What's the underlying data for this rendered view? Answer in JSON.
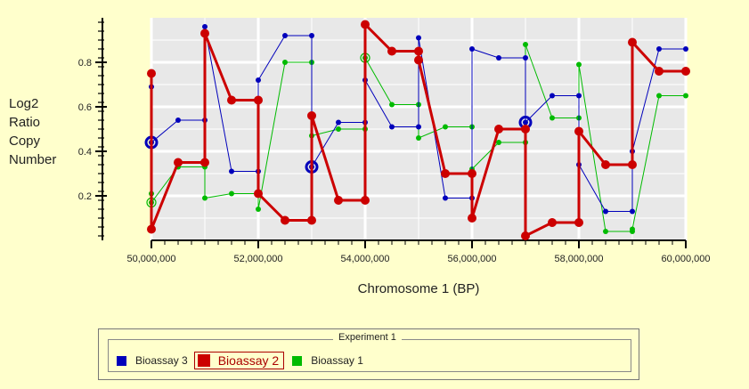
{
  "chart_data": {
    "type": "line",
    "step": true,
    "xlabel": "Chromosome 1 (BP)",
    "ylabel_lines": [
      "Log2",
      "Ratio",
      "Copy",
      "Number"
    ],
    "xlim": [
      50000000,
      60000000
    ],
    "ylim": [
      0,
      1
    ],
    "xticks": [
      50000000,
      52000000,
      54000000,
      56000000,
      58000000,
      60000000
    ],
    "xtick_labels": [
      "50,000,000",
      "52,000,000",
      "54,000,000",
      "56,000,000",
      "58,000,000",
      "60,000,000"
    ],
    "yticks": [
      0.2,
      0.4,
      0.6,
      0.8
    ],
    "ytick_labels": [
      "0.2",
      "0.4",
      "0.6",
      "0.8"
    ],
    "grid": true,
    "background": "#e8e8e8",
    "series": [
      {
        "name": "Bioassay 3",
        "color": "#0000bb",
        "width": 1,
        "points": [
          [
            50000000,
            0.69
          ],
          [
            50000000,
            0.44
          ],
          [
            50500000,
            0.54
          ],
          [
            51000000,
            0.54
          ],
          [
            51000000,
            0.96
          ],
          [
            51500000,
            0.31
          ],
          [
            52000000,
            0.31
          ],
          [
            52000000,
            0.72
          ],
          [
            52500000,
            0.92
          ],
          [
            53000000,
            0.92
          ],
          [
            53000000,
            0.33
          ],
          [
            53500000,
            0.53
          ],
          [
            54000000,
            0.53
          ],
          [
            54000000,
            0.72
          ],
          [
            54500000,
            0.51
          ],
          [
            55000000,
            0.51
          ],
          [
            55000000,
            0.91
          ],
          [
            55500000,
            0.19
          ],
          [
            56000000,
            0.19
          ],
          [
            56000000,
            0.86
          ],
          [
            56500000,
            0.82
          ],
          [
            57000000,
            0.82
          ],
          [
            57000000,
            0.53
          ],
          [
            57500000,
            0.65
          ],
          [
            58000000,
            0.65
          ],
          [
            58000000,
            0.34
          ],
          [
            58500000,
            0.13
          ],
          [
            59000000,
            0.13
          ],
          [
            59000000,
            0.4
          ],
          [
            59500000,
            0.86
          ],
          [
            60000000,
            0.86
          ]
        ],
        "circled": [
          [
            50000000,
            0.44
          ],
          [
            53000000,
            0.33
          ],
          [
            57000000,
            0.53
          ]
        ]
      },
      {
        "name": "Bioassay 2",
        "color": "#cc0000",
        "width": 3,
        "points": [
          [
            50000000,
            0.75
          ],
          [
            50000000,
            0.05
          ],
          [
            50500000,
            0.35
          ],
          [
            51000000,
            0.35
          ],
          [
            51000000,
            0.93
          ],
          [
            51500000,
            0.63
          ],
          [
            52000000,
            0.63
          ],
          [
            52000000,
            0.21
          ],
          [
            52500000,
            0.09
          ],
          [
            53000000,
            0.09
          ],
          [
            53000000,
            0.56
          ],
          [
            53500000,
            0.18
          ],
          [
            54000000,
            0.18
          ],
          [
            54000000,
            0.97
          ],
          [
            54500000,
            0.85
          ],
          [
            55000000,
            0.85
          ],
          [
            55000000,
            0.81
          ],
          [
            55500000,
            0.3
          ],
          [
            56000000,
            0.3
          ],
          [
            56000000,
            0.1
          ],
          [
            56500000,
            0.5
          ],
          [
            57000000,
            0.5
          ],
          [
            57000000,
            0.02
          ],
          [
            57500000,
            0.08
          ],
          [
            58000000,
            0.08
          ],
          [
            58000000,
            0.49
          ],
          [
            58500000,
            0.34
          ],
          [
            59000000,
            0.34
          ],
          [
            59000000,
            0.89
          ],
          [
            59500000,
            0.76
          ],
          [
            60000000,
            0.76
          ]
        ],
        "circled": []
      },
      {
        "name": "Bioassay 1",
        "color": "#00bb00",
        "width": 1,
        "points": [
          [
            50000000,
            0.21
          ],
          [
            50000000,
            0.17
          ],
          [
            50500000,
            0.33
          ],
          [
            51000000,
            0.33
          ],
          [
            51000000,
            0.19
          ],
          [
            51500000,
            0.21
          ],
          [
            52000000,
            0.21
          ],
          [
            52000000,
            0.14
          ],
          [
            52500000,
            0.8
          ],
          [
            53000000,
            0.8
          ],
          [
            53000000,
            0.47
          ],
          [
            53500000,
            0.5
          ],
          [
            54000000,
            0.5
          ],
          [
            54000000,
            0.82
          ],
          [
            54500000,
            0.61
          ],
          [
            55000000,
            0.61
          ],
          [
            55000000,
            0.46
          ],
          [
            55500000,
            0.51
          ],
          [
            56000000,
            0.51
          ],
          [
            56000000,
            0.32
          ],
          [
            56500000,
            0.44
          ],
          [
            57000000,
            0.44
          ],
          [
            57000000,
            0.88
          ],
          [
            57500000,
            0.55
          ],
          [
            58000000,
            0.55
          ],
          [
            58000000,
            0.79
          ],
          [
            58500000,
            0.04
          ],
          [
            59000000,
            0.04
          ],
          [
            59000000,
            0.05
          ],
          [
            59500000,
            0.65
          ],
          [
            60000000,
            0.65
          ]
        ],
        "circled": [
          [
            50000000,
            0.17
          ],
          [
            54000000,
            0.82
          ]
        ]
      }
    ],
    "legend": {
      "title": "Experiment 1",
      "items": [
        {
          "name": "Bioassay 3",
          "color": "#0000bb",
          "selected": false
        },
        {
          "name": "Bioassay 2",
          "color": "#cc0000",
          "selected": true
        },
        {
          "name": "Bioassay 1",
          "color": "#00bb00",
          "selected": false
        }
      ]
    }
  }
}
